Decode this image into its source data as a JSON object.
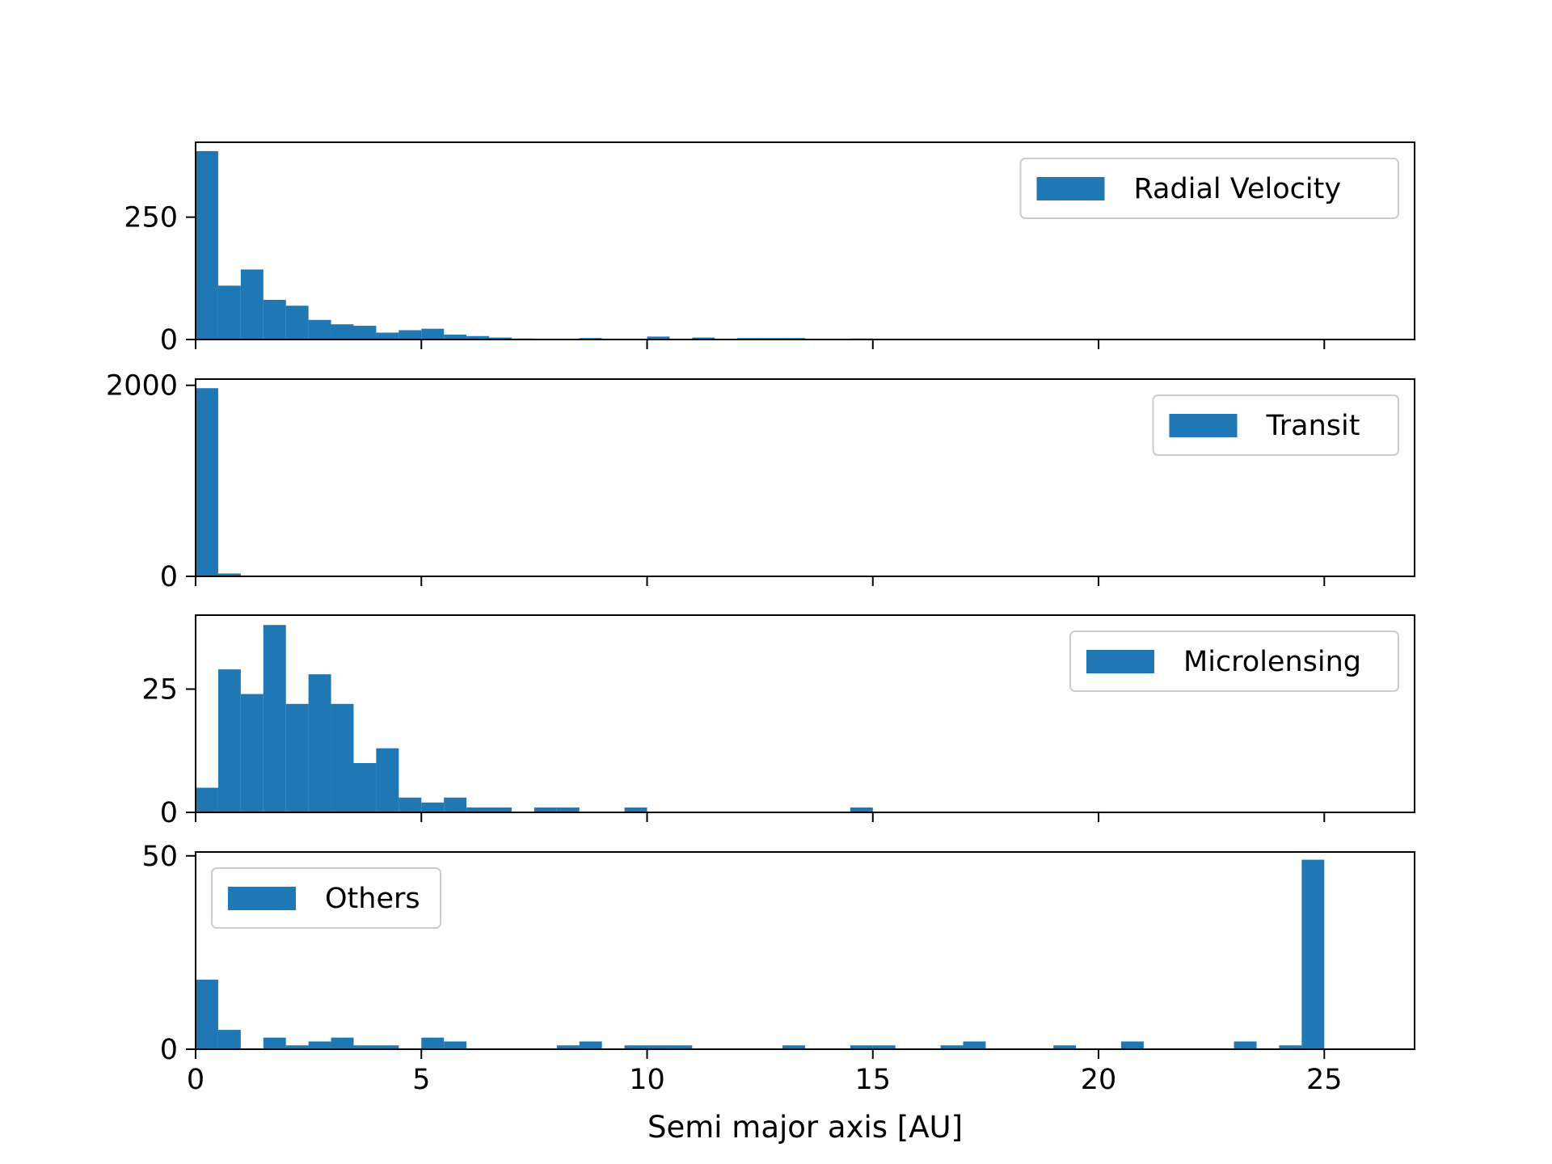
{
  "colors": {
    "bar": "#1f77b4",
    "axis": "#000000",
    "legend_border": "#cccccc"
  },
  "xlabel": "Semi major axis [AU]",
  "chart_data": [
    {
      "type": "bar",
      "name": "Radial Velocity",
      "legend_position": "upper right",
      "bin_width": 0.5,
      "bin_starts": [
        0,
        0.5,
        1,
        1.5,
        2,
        2.5,
        3,
        3.5,
        4,
        4.5,
        5,
        5.5,
        6,
        6.5,
        7,
        7.5,
        8,
        8.5,
        9,
        9.5,
        10,
        10.5,
        11,
        11.5,
        12,
        12.5,
        13,
        13.5,
        14,
        14.5,
        15,
        15.5,
        16,
        16.5,
        17,
        17.5,
        18,
        18.5,
        19,
        19.5,
        20,
        20.5,
        21,
        21.5,
        22,
        22.5,
        23,
        23.5,
        24,
        24.5
      ],
      "values": [
        385,
        110,
        143,
        81,
        69,
        40,
        31,
        28,
        14,
        19,
        22,
        10,
        7,
        4,
        2,
        1,
        1,
        3,
        0,
        0,
        6,
        1,
        4,
        1,
        3,
        3,
        3,
        0,
        0,
        2,
        0,
        0,
        0,
        0,
        0,
        0,
        0,
        0,
        0,
        0,
        0,
        0,
        0,
        0,
        0,
        0,
        0,
        0,
        0,
        0
      ],
      "xlim": [
        0,
        27
      ],
      "ylim": [
        0,
        403
      ],
      "y_ticks": [
        0,
        250
      ],
      "x_ticks": [
        0,
        5,
        10,
        15,
        20,
        25
      ]
    },
    {
      "type": "bar",
      "name": "Transit",
      "legend_position": "upper right",
      "bin_width": 0.5,
      "bin_starts": [
        0,
        0.5,
        1,
        1.5,
        2,
        2.5,
        3,
        3.5,
        4,
        4.5,
        5,
        5.5,
        6,
        6.5,
        7,
        7.5,
        8,
        8.5,
        9,
        9.5,
        10,
        10.5,
        11,
        11.5,
        12,
        12.5,
        13,
        13.5,
        14,
        14.5,
        15,
        15.5,
        16,
        16.5,
        17,
        17.5,
        18,
        18.5,
        19,
        19.5,
        20,
        20.5,
        21,
        21.5,
        22,
        22.5,
        23,
        23.5,
        24,
        24.5
      ],
      "values": [
        1970,
        30,
        0,
        0,
        0,
        0,
        0,
        0,
        0,
        0,
        0,
        0,
        0,
        0,
        0,
        0,
        0,
        0,
        0,
        0,
        0,
        0,
        0,
        0,
        0,
        0,
        0,
        0,
        0,
        0,
        0,
        0,
        0,
        0,
        0,
        0,
        0,
        0,
        0,
        0,
        0,
        0,
        0,
        0,
        0,
        0,
        0,
        0,
        0,
        0
      ],
      "xlim": [
        0,
        27
      ],
      "ylim": [
        0,
        2065
      ],
      "y_ticks": [
        0,
        2000
      ],
      "x_ticks": [
        0,
        5,
        10,
        15,
        20,
        25
      ]
    },
    {
      "type": "bar",
      "name": "Microlensing",
      "legend_position": "upper right",
      "bin_width": 0.5,
      "bin_starts": [
        0,
        0.5,
        1,
        1.5,
        2,
        2.5,
        3,
        3.5,
        4,
        4.5,
        5,
        5.5,
        6,
        6.5,
        7,
        7.5,
        8,
        8.5,
        9,
        9.5,
        10,
        10.5,
        11,
        11.5,
        12,
        12.5,
        13,
        13.5,
        14,
        14.5,
        15,
        15.5,
        16,
        16.5,
        17,
        17.5,
        18,
        18.5,
        19,
        19.5,
        20,
        20.5,
        21,
        21.5,
        22,
        22.5,
        23,
        23.5,
        24,
        24.5
      ],
      "values": [
        5,
        29,
        24,
        38,
        22,
        28,
        22,
        10,
        13,
        3,
        2,
        3,
        1,
        1,
        0,
        1,
        1,
        0,
        0,
        1,
        0,
        0,
        0,
        0,
        0,
        0,
        0,
        0,
        0,
        1,
        0,
        0,
        0,
        0,
        0,
        0,
        0,
        0,
        0,
        0,
        0,
        0,
        0,
        0,
        0,
        0,
        0,
        0,
        0,
        0
      ],
      "xlim": [
        0,
        27
      ],
      "ylim": [
        0,
        40
      ],
      "y_ticks": [
        0,
        25
      ],
      "x_ticks": [
        0,
        5,
        10,
        15,
        20,
        25
      ]
    },
    {
      "type": "bar",
      "name": "Others",
      "legend_position": "upper left",
      "bin_width": 0.5,
      "bin_starts": [
        0,
        0.5,
        1,
        1.5,
        2,
        2.5,
        3,
        3.5,
        4,
        4.5,
        5,
        5.5,
        6,
        6.5,
        7,
        7.5,
        8,
        8.5,
        9,
        9.5,
        10,
        10.5,
        11,
        11.5,
        12,
        12.5,
        13,
        13.5,
        14,
        14.5,
        15,
        15.5,
        16,
        16.5,
        17,
        17.5,
        18,
        18.5,
        19,
        19.5,
        20,
        20.5,
        21,
        21.5,
        22,
        22.5,
        23,
        23.5,
        24,
        24.5
      ],
      "values": [
        18,
        5,
        0,
        3,
        1,
        2,
        3,
        1,
        1,
        0,
        3,
        2,
        0,
        0,
        0,
        0,
        1,
        2,
        0,
        1,
        1,
        1,
        0,
        0,
        0,
        0,
        1,
        0,
        0,
        1,
        1,
        0,
        0,
        1,
        2,
        0,
        0,
        0,
        1,
        0,
        0,
        2,
        0,
        0,
        0,
        0,
        2,
        0,
        1,
        49
      ],
      "xlim": [
        0,
        27
      ],
      "ylim": [
        0,
        51
      ],
      "y_ticks": [
        0,
        50
      ],
      "x_ticks": [
        0,
        5,
        10,
        15,
        20,
        25
      ]
    }
  ]
}
